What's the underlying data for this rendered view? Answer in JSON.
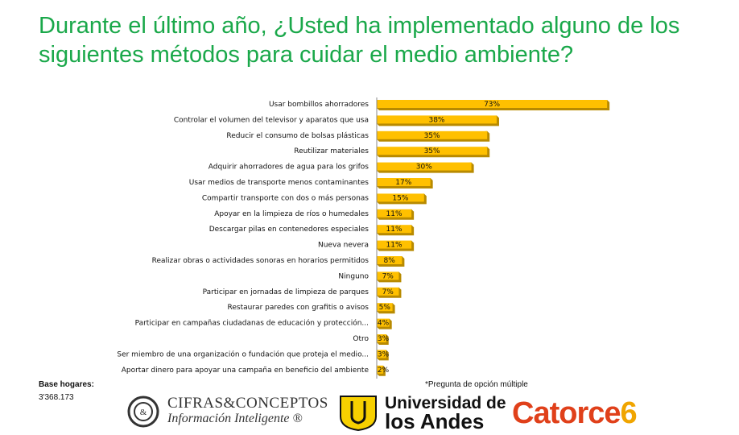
{
  "title": "Durante el último año, ¿Usted ha implementado alguno de los siguientes métodos para cuidar el medio ambiente?",
  "base": {
    "label": "Base hogares:",
    "value": "3'368.173"
  },
  "note": "*Pregunta de opción múltiple",
  "logos": {
    "cifras_line1": "CIFRAS&CONCEPTOS",
    "cifras_line2": "Información Inteligente ®",
    "andes_line1": "Universidad de",
    "andes_line2": "los Andes",
    "catorce_text": "Catorce",
    "catorce_num": "6"
  },
  "colors": {
    "title": "#1aa84a",
    "bar": "#ffc000",
    "bar_edge": "#b88a00",
    "catorce": "#e0401a"
  },
  "chart_data": {
    "type": "bar",
    "orientation": "horizontal",
    "categories": [
      "Usar bombillos ahorradores",
      "Controlar el volumen del televisor y aparatos que usa",
      "Reducir el consumo de bolsas plásticas",
      "Reutilizar materiales",
      "Adquirir ahorradores de agua para los grifos",
      "Usar medios de transporte menos contaminantes",
      "Compartir transporte con dos o más personas",
      "Apoyar en la limpieza de ríos o humedales",
      "Descargar pilas en contenedores especiales",
      "Nueva nevera",
      "Realizar obras o actividades sonoras en horarios permitidos",
      "Ninguno",
      "Participar en jornadas de limpieza de parques",
      "Restaurar paredes con grafitis o avisos",
      "Participar en campañas ciudadanas de educación y protección...",
      "Otro",
      "Ser miembro de una organización o fundación que proteja el medio...",
      "Aportar dinero para apoyar una campaña en beneficio del ambiente"
    ],
    "values": [
      73,
      38,
      35,
      35,
      30,
      17,
      15,
      11,
      11,
      11,
      8,
      7,
      7,
      5,
      4,
      3,
      3,
      2
    ],
    "value_labels": [
      "73%",
      "38%",
      "35%",
      "35%",
      "30%",
      "17%",
      "15%",
      "11%",
      "11%",
      "11%",
      "8%",
      "7%",
      "7%",
      "5%",
      "4%",
      "3%",
      "3%",
      "2%"
    ],
    "xlim": [
      0,
      75
    ],
    "grid": false,
    "legend": "none"
  }
}
